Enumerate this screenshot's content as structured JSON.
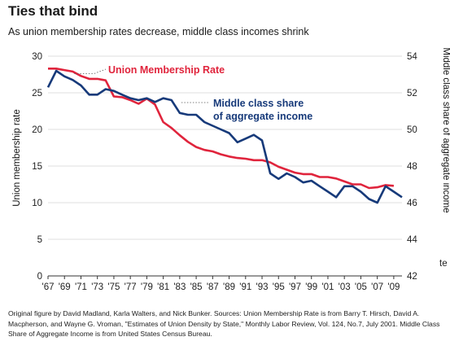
{
  "chart_data": {
    "type": "line",
    "title": "Ties that bind",
    "subtitle": "As union membership rates decrease, middle class incomes shrink",
    "ylabel_left": "Union membership rate",
    "ylabel_right": "Middle class share of aggregate income",
    "ylim_left": [
      0,
      30
    ],
    "ylim_right": [
      42,
      54
    ],
    "left_ticks": [
      "0",
      "5",
      "10",
      "15",
      "20",
      "25",
      "30"
    ],
    "right_ticks": [
      "42",
      "44",
      "46",
      "48",
      "50",
      "52",
      "54"
    ],
    "x_ticks": [
      "'67",
      "'69",
      "'71",
      "'73",
      "'75",
      "'77",
      "'79",
      "'81",
      "'83",
      "'85",
      "'87",
      "'89",
      "'91",
      "'93",
      "'95",
      "'97",
      "'99",
      "'01",
      "'03",
      "'05",
      "'07",
      "'09"
    ],
    "x_range": [
      1967,
      2010
    ],
    "stray_text": "te",
    "grid": true,
    "series": [
      {
        "name": "Union Membership Rate",
        "label": "Union Membership Rate",
        "axis": "left",
        "color": "#e0243c",
        "x": [
          1967,
          1968,
          1969,
          1970,
          1971,
          1972,
          1973,
          1974,
          1975,
          1976,
          1977,
          1978,
          1979,
          1980,
          1981,
          1982,
          1983,
          1984,
          1985,
          1986,
          1987,
          1988,
          1989,
          1990,
          1991,
          1992,
          1993,
          1994,
          1995,
          1996,
          1997,
          1998,
          1999,
          2000,
          2001,
          2002,
          2003,
          2004,
          2005,
          2006,
          2007,
          2008,
          2009,
          2010
        ],
        "values": [
          28.3,
          28.3,
          28.1,
          27.9,
          27.3,
          26.9,
          26.9,
          26.7,
          24.5,
          24.4,
          24.0,
          23.5,
          24.2,
          23.4,
          21.0,
          20.2,
          19.2,
          18.3,
          17.6,
          17.2,
          17.0,
          16.6,
          16.3,
          16.1,
          16.0,
          15.8,
          15.8,
          15.5,
          14.9,
          14.5,
          14.1,
          13.9,
          13.9,
          13.5,
          13.5,
          13.3,
          12.9,
          12.5,
          12.5,
          12.0,
          12.1,
          12.4,
          12.3,
          null
        ]
      },
      {
        "name": "Middle class share of aggregate income",
        "label": "Middle class share\nof aggregate income",
        "axis": "right",
        "color": "#173a7a",
        "x": [
          1967,
          1968,
          1969,
          1970,
          1971,
          1972,
          1973,
          1974,
          1975,
          1976,
          1977,
          1978,
          1979,
          1980,
          1981,
          1982,
          1983,
          1984,
          1985,
          1986,
          1987,
          1988,
          1989,
          1990,
          1991,
          1992,
          1993,
          1994,
          1995,
          1996,
          1997,
          1998,
          1999,
          2000,
          2001,
          2002,
          2003,
          2004,
          2005,
          2006,
          2007,
          2008,
          2009,
          2010
        ],
        "values": [
          52.3,
          53.2,
          52.9,
          52.7,
          52.4,
          51.9,
          51.9,
          52.2,
          52.1,
          51.9,
          51.7,
          51.6,
          51.7,
          51.5,
          51.7,
          51.6,
          50.9,
          50.8,
          50.8,
          50.4,
          50.2,
          50.0,
          49.8,
          49.3,
          49.5,
          49.7,
          49.4,
          47.6,
          47.3,
          47.6,
          47.4,
          47.1,
          47.2,
          46.9,
          46.6,
          46.3,
          46.9,
          46.9,
          46.6,
          46.2,
          46.0,
          46.9,
          46.6,
          46.3
        ]
      }
    ]
  },
  "source_note": "Original figure by David Madland, Karla Walters, and Nick Bunker. Sources: Union Membership Rate is from Barry T. Hirsch, David A. Macpherson, and Wayne G. Vroman, \"Estimates of Union Density by State,\" Monthly Labor Review, Vol. 124, No.7, July 2001. Middle Class Share of Aggregate Income is from United States Census Bureau."
}
